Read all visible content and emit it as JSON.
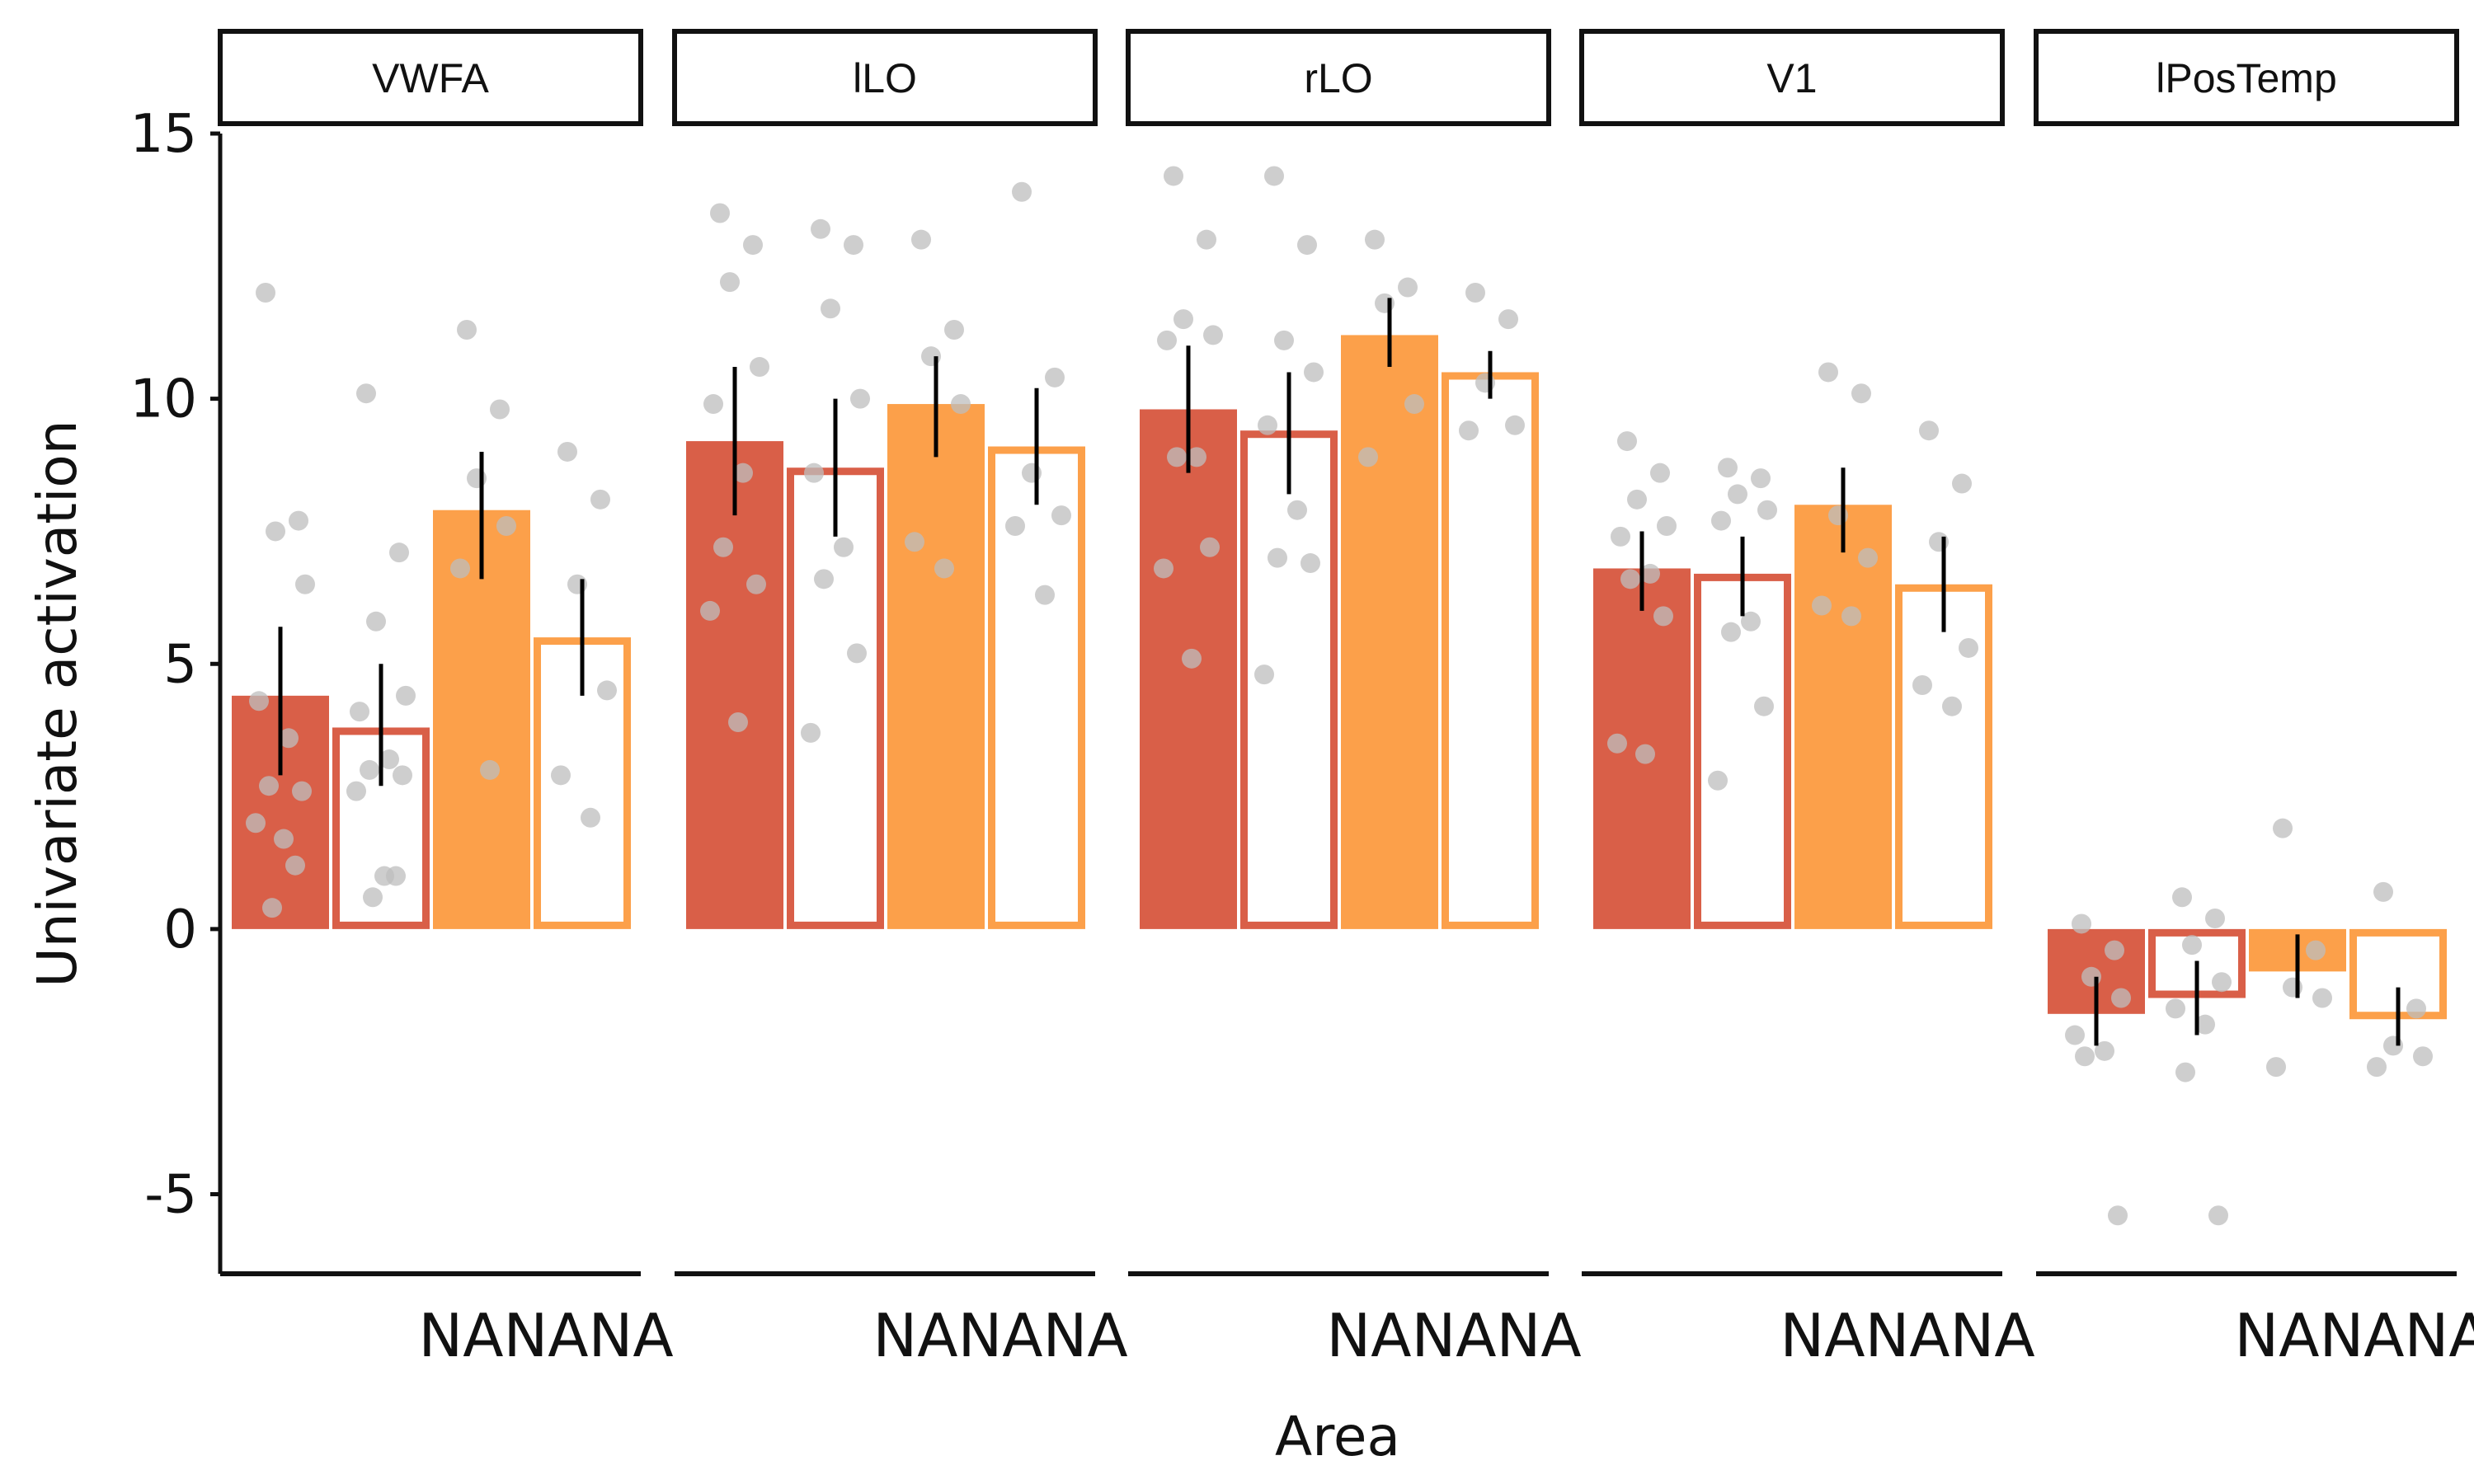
{
  "chart_data": {
    "type": "bar",
    "xlabel": "Area",
    "ylabel": "Univariate activation",
    "ylim": [
      -6.5,
      15
    ],
    "yticks": [
      -5,
      0,
      5,
      10,
      15
    ],
    "ytick_labels": [
      "-5",
      "0",
      "5",
      "10",
      "15"
    ],
    "grid": false,
    "legend": "none",
    "colors": {
      "red": "#D95F48",
      "orange": "#FCA04A",
      "point": "#BDBDBD",
      "errorbar": "#000000"
    },
    "bar_styles": [
      {
        "color": "red",
        "fill": "solid"
      },
      {
        "color": "red",
        "fill": "hollow"
      },
      {
        "color": "orange",
        "fill": "solid"
      },
      {
        "color": "orange",
        "fill": "hollow"
      }
    ],
    "panels": [
      {
        "area": "VWFA",
        "xtick_labels": [
          "NA",
          "NA",
          "NA"
        ],
        "bars": [
          {
            "mean": 4.4,
            "ci": [
              2.9,
              5.7
            ],
            "points": [
              12.0,
              7.7,
              7.5,
              6.5,
              4.3,
              3.6,
              2.7,
              2.6,
              2.0,
              1.7,
              1.2,
              0.4
            ]
          },
          {
            "mean": 3.8,
            "ci": [
              2.7,
              5.0
            ],
            "points": [
              10.1,
              7.1,
              5.8,
              4.4,
              4.1,
              3.2,
              3.0,
              2.9,
              2.6,
              1.0,
              1.0,
              0.6
            ]
          },
          {
            "mean": 7.9,
            "ci": [
              6.6,
              9.0
            ],
            "points": [
              11.3,
              9.8,
              8.5,
              7.6,
              6.8,
              3.0
            ]
          },
          {
            "mean": 5.5,
            "ci": [
              4.4,
              6.6
            ],
            "points": [
              9.0,
              8.1,
              6.5,
              4.5,
              2.9,
              2.1
            ]
          }
        ]
      },
      {
        "area": "lLO",
        "xtick_labels": [
          "NA",
          "NA",
          "NA"
        ],
        "bars": [
          {
            "mean": 9.2,
            "ci": [
              7.8,
              10.6
            ],
            "points": [
              13.5,
              12.9,
              12.2,
              10.6,
              9.9,
              8.6,
              7.2,
              6.5,
              6.0,
              3.9
            ]
          },
          {
            "mean": 8.7,
            "ci": [
              7.4,
              10.0
            ],
            "points": [
              13.2,
              12.9,
              11.7,
              10.0,
              8.6,
              7.2,
              6.6,
              5.2,
              3.7
            ]
          },
          {
            "mean": 9.9,
            "ci": [
              8.9,
              10.8
            ],
            "points": [
              13.0,
              11.3,
              10.8,
              9.9,
              7.3,
              6.8
            ]
          },
          {
            "mean": 9.1,
            "ci": [
              8.0,
              10.2
            ],
            "points": [
              13.9,
              10.4,
              8.6,
              7.8,
              7.6,
              6.3
            ]
          }
        ]
      },
      {
        "area": "rLO",
        "xtick_labels": [
          "NA",
          "NA",
          "NA"
        ],
        "bars": [
          {
            "mean": 9.8,
            "ci": [
              8.6,
              11.0
            ],
            "points": [
              14.2,
              13.0,
              11.5,
              11.2,
              11.1,
              8.9,
              8.9,
              7.2,
              6.8,
              5.1
            ]
          },
          {
            "mean": 9.4,
            "ci": [
              8.2,
              10.5
            ],
            "points": [
              14.2,
              12.9,
              11.1,
              10.5,
              9.5,
              7.9,
              7.0,
              6.9,
              4.8
            ]
          },
          {
            "mean": 11.2,
            "ci": [
              10.6,
              11.9
            ],
            "points": [
              13.0,
              12.1,
              11.8,
              9.9,
              8.9
            ]
          },
          {
            "mean": 10.5,
            "ci": [
              10.0,
              10.9
            ],
            "points": [
              12.0,
              11.5,
              10.3,
              9.5,
              9.4
            ]
          }
        ]
      },
      {
        "area": "V1",
        "xtick_labels": [
          "NA",
          "NA",
          "NA"
        ],
        "bars": [
          {
            "mean": 6.8,
            "ci": [
              6.0,
              7.5
            ],
            "points": [
              9.2,
              8.6,
              8.1,
              7.6,
              7.4,
              6.7,
              6.6,
              5.9,
              3.5,
              3.3
            ]
          },
          {
            "mean": 6.7,
            "ci": [
              5.9,
              7.4
            ],
            "points": [
              8.7,
              8.5,
              8.2,
              7.9,
              7.7,
              5.8,
              5.6,
              4.2,
              2.8
            ]
          },
          {
            "mean": 8.0,
            "ci": [
              7.1,
              8.7
            ],
            "points": [
              10.5,
              10.1,
              7.8,
              7.0,
              6.1,
              5.9
            ]
          },
          {
            "mean": 6.5,
            "ci": [
              5.6,
              7.4
            ],
            "points": [
              9.4,
              8.4,
              7.3,
              5.3,
              4.6,
              4.2
            ]
          }
        ]
      },
      {
        "area": "lPosTemp",
        "xtick_labels": [
          "NA",
          "NA",
          "NA"
        ],
        "bars": [
          {
            "mean": -1.6,
            "ci": [
              -2.2,
              -0.9
            ],
            "points": [
              0.1,
              -0.4,
              -0.9,
              -1.3,
              -2.0,
              -2.3,
              -2.4,
              -5.4
            ]
          },
          {
            "mean": -1.3,
            "ci": [
              -2.0,
              -0.6
            ],
            "points": [
              0.6,
              0.2,
              -0.3,
              -1.0,
              -1.5,
              -1.8,
              -2.7,
              -5.4
            ]
          },
          {
            "mean": -0.8,
            "ci": [
              -1.3,
              -0.1
            ],
            "points": [
              1.9,
              -0.4,
              -1.1,
              -1.3,
              -2.6
            ]
          },
          {
            "mean": -1.7,
            "ci": [
              -2.2,
              -1.1
            ],
            "points": [
              0.7,
              -1.5,
              -2.2,
              -2.4,
              -2.6
            ]
          }
        ]
      }
    ]
  }
}
